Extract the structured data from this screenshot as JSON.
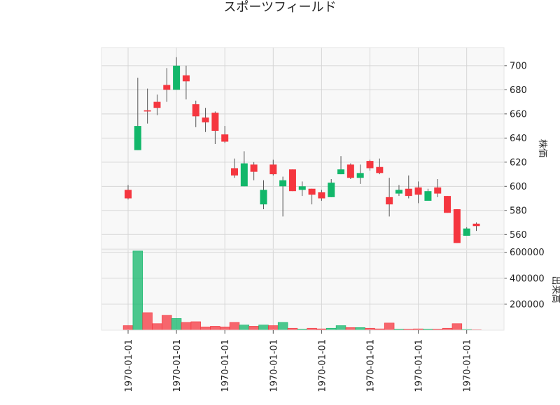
{
  "chart_data": {
    "type": "candlestick",
    "title": "スポーツフィールド",
    "price_ylabel": "株価",
    "volume_ylabel": "出来高",
    "price_ylim": [
      548,
      715
    ],
    "volume_ylim": [
      0,
      620000
    ],
    "price_yticks": [
      560,
      580,
      600,
      620,
      640,
      660,
      680,
      700
    ],
    "volume_yticks": [
      200000,
      400000,
      600000
    ],
    "x_tick_labels": [
      "1970-01-01",
      "1970-01-01",
      "1970-01-01",
      "1970-01-01",
      "1970-01-01",
      "1970-01-01",
      "1970-01-01",
      "1970-01-01"
    ],
    "x_tick_indices": [
      0,
      5,
      10,
      15,
      20,
      25,
      30,
      35
    ],
    "grid": true,
    "up_color": "#12b76a",
    "down_color": "#f5363f",
    "candles": [
      {
        "open": 597,
        "high": 601,
        "low": 589,
        "close": 590,
        "volume": 35000
      },
      {
        "open": 630,
        "high": 690,
        "low": 630,
        "close": 650,
        "volume": 610000
      },
      {
        "open": 663,
        "high": 681,
        "low": 652,
        "close": 662,
        "volume": 135000
      },
      {
        "open": 670,
        "high": 676,
        "low": 659,
        "close": 665,
        "volume": 50000
      },
      {
        "open": 684,
        "high": 698,
        "low": 670,
        "close": 680,
        "volume": 115000
      },
      {
        "open": 680,
        "high": 707,
        "low": 680,
        "close": 700,
        "volume": 90000
      },
      {
        "open": 692,
        "high": 700,
        "low": 672,
        "close": 687,
        "volume": 60000
      },
      {
        "open": 668,
        "high": 671,
        "low": 649,
        "close": 658,
        "volume": 65000
      },
      {
        "open": 657,
        "high": 665,
        "low": 645,
        "close": 653,
        "volume": 25000
      },
      {
        "open": 661,
        "high": 662,
        "low": 635,
        "close": 646,
        "volume": 30000
      },
      {
        "open": 643,
        "high": 650,
        "low": 636,
        "close": 637,
        "volume": 25000
      },
      {
        "open": 615,
        "high": 623,
        "low": 607,
        "close": 609,
        "volume": 60000
      },
      {
        "open": 600,
        "high": 629,
        "low": 600,
        "close": 619,
        "volume": 40000
      },
      {
        "open": 618,
        "high": 620,
        "low": 605,
        "close": 612,
        "volume": 30000
      },
      {
        "open": 585,
        "high": 605,
        "low": 581,
        "close": 597,
        "volume": 40000
      },
      {
        "open": 618,
        "high": 622,
        "low": 609,
        "close": 610,
        "volume": 35000
      },
      {
        "open": 600,
        "high": 608,
        "low": 575,
        "close": 605,
        "volume": 60000
      },
      {
        "open": 614,
        "high": 614,
        "low": 596,
        "close": 596,
        "volume": 15000
      },
      {
        "open": 597,
        "high": 604,
        "low": 592,
        "close": 600,
        "volume": 8000
      },
      {
        "open": 598,
        "high": 598,
        "low": 585,
        "close": 593,
        "volume": 15000
      },
      {
        "open": 595,
        "high": 597,
        "low": 588,
        "close": 590,
        "volume": 10000
      },
      {
        "open": 591,
        "high": 606,
        "low": 591,
        "close": 603,
        "volume": 15000
      },
      {
        "open": 610,
        "high": 625,
        "low": 610,
        "close": 614,
        "volume": 35000
      },
      {
        "open": 618,
        "high": 619,
        "low": 606,
        "close": 607,
        "volume": 20000
      },
      {
        "open": 607,
        "high": 618,
        "low": 602,
        "close": 611,
        "volume": 20000
      },
      {
        "open": 621,
        "high": 622,
        "low": 613,
        "close": 615,
        "volume": 15000
      },
      {
        "open": 616,
        "high": 623,
        "low": 610,
        "close": 611,
        "volume": 10000
      },
      {
        "open": 591,
        "high": 607,
        "low": 575,
        "close": 585,
        "volume": 55000
      },
      {
        "open": 594,
        "high": 601,
        "low": 592,
        "close": 597,
        "volume": 8000
      },
      {
        "open": 598,
        "high": 609,
        "low": 590,
        "close": 592,
        "volume": 8000
      },
      {
        "open": 599,
        "high": 604,
        "low": 586,
        "close": 593,
        "volume": 10000
      },
      {
        "open": 588,
        "high": 598,
        "low": 588,
        "close": 596,
        "volume": 8000
      },
      {
        "open": 599,
        "high": 606,
        "low": 591,
        "close": 594,
        "volume": 8000
      },
      {
        "open": 592,
        "high": 592,
        "low": 578,
        "close": 578,
        "volume": 15000
      },
      {
        "open": 581,
        "high": 581,
        "low": 553,
        "close": 553,
        "volume": 50000
      },
      {
        "open": 559,
        "high": 566,
        "low": 559,
        "close": 565,
        "volume": 5000
      },
      {
        "open": 569,
        "high": 570,
        "low": 563,
        "close": 567,
        "volume": 3000
      }
    ]
  }
}
